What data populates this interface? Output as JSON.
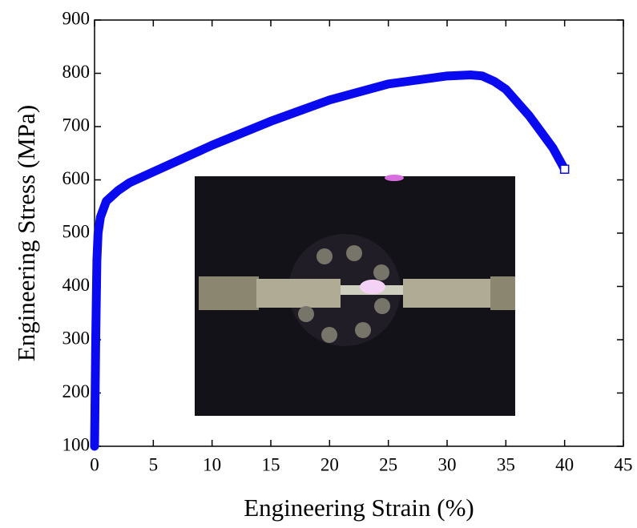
{
  "chart_data": {
    "type": "line",
    "xlabel": "Engineering Strain (%)",
    "ylabel": "Engineering Stress (MPa)",
    "x": [
      0,
      0.1,
      0.2,
      0.3,
      0.5,
      1,
      2,
      3,
      5,
      10,
      15,
      20,
      25,
      30,
      32,
      33,
      34,
      35,
      36,
      37,
      38,
      39,
      40
    ],
    "series": [
      {
        "color": "#0a0af0",
        "values": [
          100,
          300,
          450,
          500,
          530,
          560,
          580,
          595,
          615,
          665,
          710,
          750,
          780,
          795,
          797,
          795,
          785,
          770,
          745,
          720,
          690,
          660,
          620
        ]
      }
    ],
    "xlim": [
      0,
      45
    ],
    "xticks": [
      0,
      5,
      10,
      15,
      20,
      25,
      30,
      35,
      40,
      45
    ],
    "ylim": [
      100,
      900
    ],
    "yticks": [
      100,
      200,
      300,
      400,
      500,
      600,
      700,
      800,
      900
    ]
  }
}
